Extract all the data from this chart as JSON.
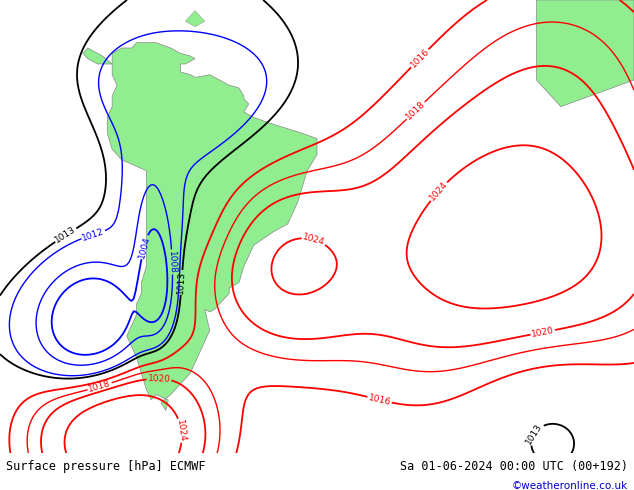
{
  "title_left": "Surface pressure [hPa] ECMWF",
  "title_right": "Sa 01-06-2024 00:00 UTC (00+192)",
  "copyright": "©weatheronline.co.uk",
  "bg_color": "#d0d0d0",
  "land_color": "#90ee90",
  "ocean_color": "#d0d0d0",
  "fig_width": 6.34,
  "fig_height": 4.9,
  "dpi": 100,
  "lon_min": -100,
  "lon_max": 30,
  "lat_min": -65,
  "lat_max": 20
}
